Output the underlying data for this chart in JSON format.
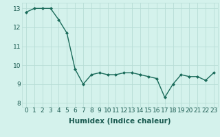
{
  "x": [
    0,
    1,
    2,
    3,
    4,
    5,
    6,
    7,
    8,
    9,
    10,
    11,
    12,
    13,
    14,
    15,
    16,
    17,
    18,
    19,
    20,
    21,
    22,
    23
  ],
  "y": [
    12.8,
    13.0,
    13.0,
    13.0,
    12.4,
    11.7,
    9.8,
    9.0,
    9.5,
    9.6,
    9.5,
    9.5,
    9.6,
    9.6,
    9.5,
    9.4,
    9.3,
    8.3,
    9.0,
    9.5,
    9.4,
    9.4,
    9.2,
    9.6
  ],
  "line_color": "#1a6b5a",
  "marker": "D",
  "marker_size": 2.0,
  "bg_color": "#d4f2ec",
  "grid_color": "#b8ddd6",
  "xlabel": "Humidex (Indice chaleur)",
  "xlim": [
    -0.5,
    23.5
  ],
  "ylim": [
    7.8,
    13.3
  ],
  "yticks": [
    8,
    9,
    10,
    11,
    12,
    13
  ],
  "xtick_labels": [
    "0",
    "1",
    "2",
    "3",
    "4",
    "5",
    "6",
    "7",
    "8",
    "9",
    "10",
    "11",
    "12",
    "13",
    "14",
    "15",
    "16",
    "17",
    "18",
    "19",
    "20",
    "21",
    "22",
    "23"
  ],
  "linewidth": 1.0,
  "xlabel_fontsize": 7.5,
  "tick_fontsize": 6.5
}
